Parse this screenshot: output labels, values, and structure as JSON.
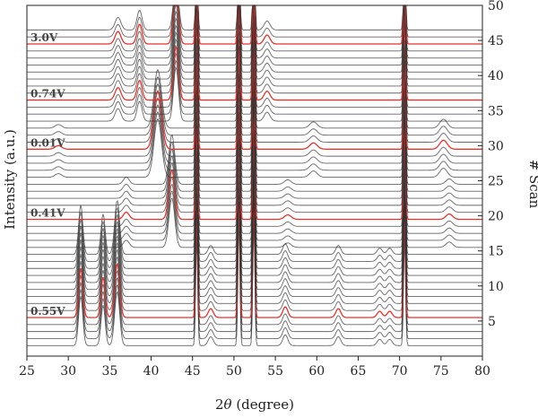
{
  "chart_data": {
    "type": "line",
    "title": "",
    "xlabel_prefix": "2",
    "xlabel_theta": "θ",
    "xlabel_suffix": " (degree)",
    "ylabel_left": "Intensity (a.u.)",
    "ylabel_right": "# Scan",
    "xlim": [
      25,
      80
    ],
    "x_ticks": [
      25,
      30,
      35,
      40,
      45,
      50,
      55,
      60,
      65,
      70,
      75,
      80
    ],
    "scan_lim": [
      0,
      50
    ],
    "scan_ticks": [
      5,
      10,
      15,
      20,
      25,
      30,
      35,
      40,
      45,
      50
    ],
    "scan_count": 46,
    "grey_color": "#333333",
    "highlight_color": "#e8322a",
    "highlighted_scans": [
      {
        "scan": 5.5,
        "label": "0.55V"
      },
      {
        "scan": 19.5,
        "label": "0.41V"
      },
      {
        "scan": 29.5,
        "label": "0.01V"
      },
      {
        "scan": 36.5,
        "label": "0.74V"
      },
      {
        "scan": 44.5,
        "label": "3.0V"
      }
    ]
  }
}
